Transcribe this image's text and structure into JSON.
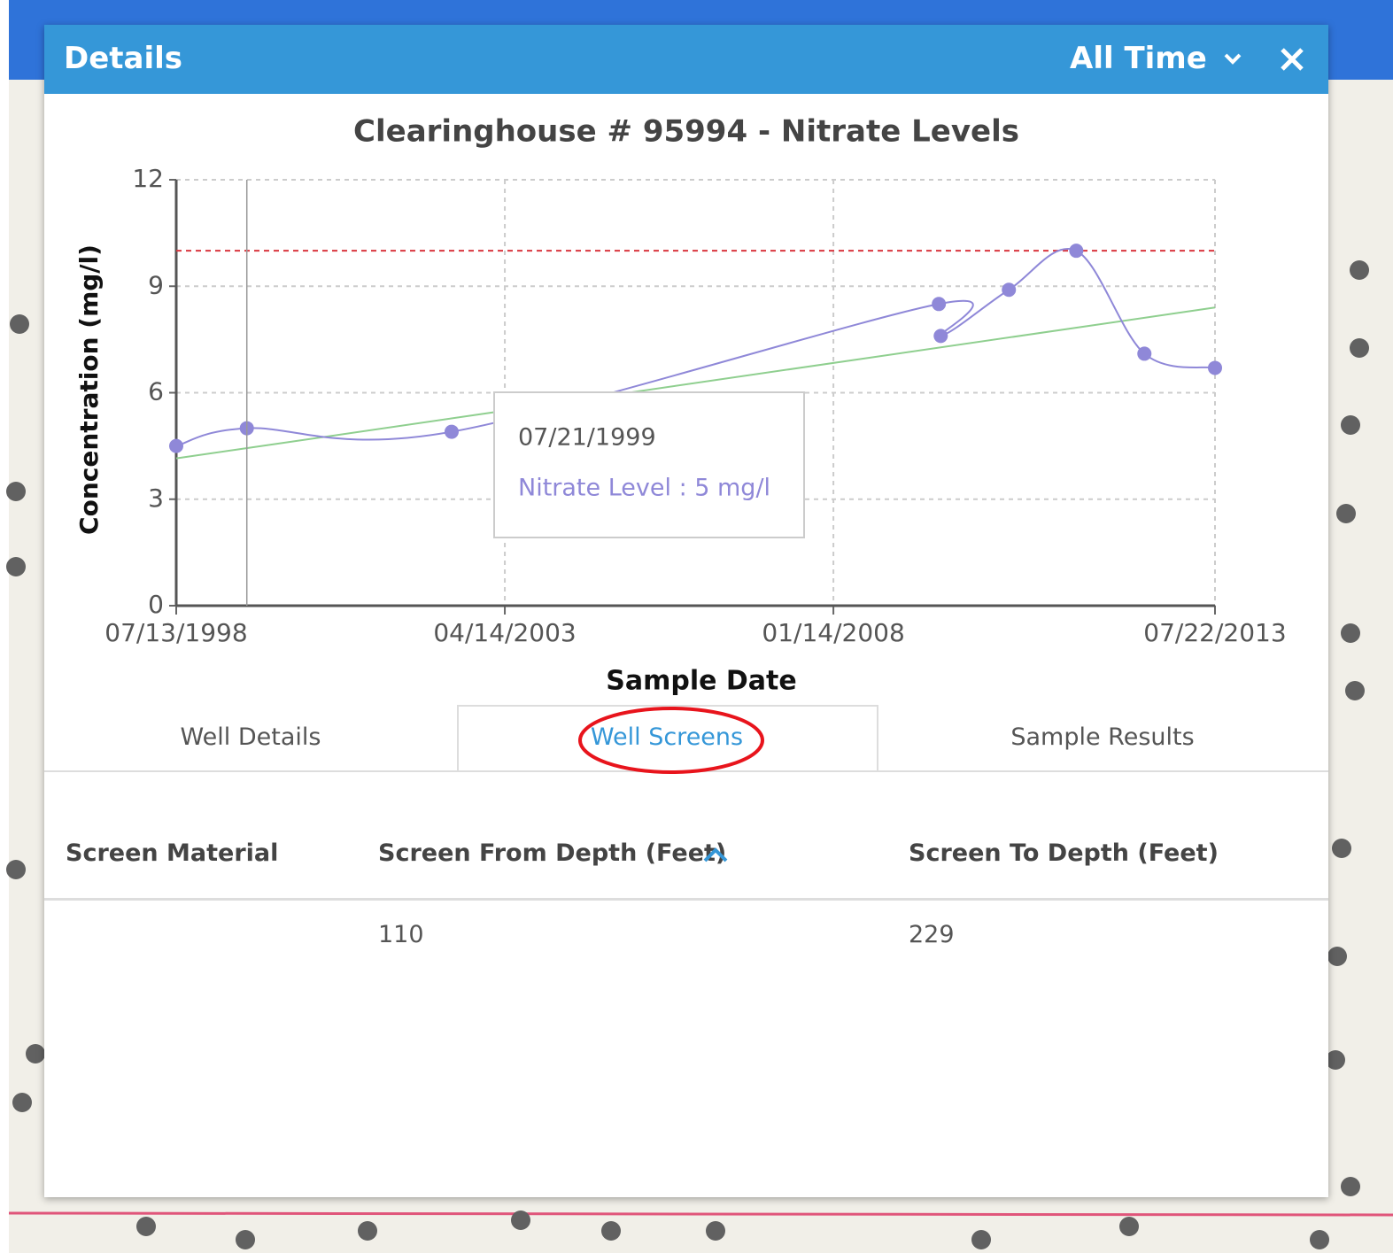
{
  "header": {
    "title": "Details",
    "range": "All Time"
  },
  "chart_data": {
    "type": "line",
    "title": "Clearinghouse # 95994 - Nitrate Levels",
    "xlabel": "Sample Date",
    "ylabel": "Concentration (mg/l)",
    "x": [
      "07/13/1998",
      "07/21/1999",
      "07/07/2002",
      "07/24/2009",
      "08/03/2009",
      "07/29/2010",
      "07/20/2011",
      "07/14/2012",
      "07/22/2013"
    ],
    "series": [
      {
        "name": "Nitrate Level",
        "color": "#8f88d8",
        "values": [
          4.5,
          5,
          4.9,
          8.5,
          7.6,
          8.9,
          10,
          7.1,
          6.7
        ]
      }
    ],
    "trend": {
      "color": "#8fcf8f",
      "values": [
        4.15,
        8.4
      ]
    },
    "limit": {
      "color": "#d9363e",
      "value": 10
    },
    "xlim": [
      "07/13/1998",
      "07/22/2013"
    ],
    "xticks": [
      "07/13/1998",
      "04/14/2003",
      "01/14/2008",
      "07/22/2013"
    ],
    "ylim": [
      0,
      12
    ],
    "yticks": [
      0,
      3,
      6,
      9,
      12
    ],
    "grid": true
  },
  "tooltip": {
    "date": "07/21/1999",
    "text": "Nitrate Level : 5 mg/l"
  },
  "tabs": [
    "Well Details",
    "Well Screens",
    "Sample Results"
  ],
  "table": {
    "columns": [
      "Screen Material",
      "Screen From Depth (Feet)",
      "Screen To Depth (Feet)"
    ],
    "rows": [
      {
        "from": 110,
        "to": 229
      }
    ]
  }
}
